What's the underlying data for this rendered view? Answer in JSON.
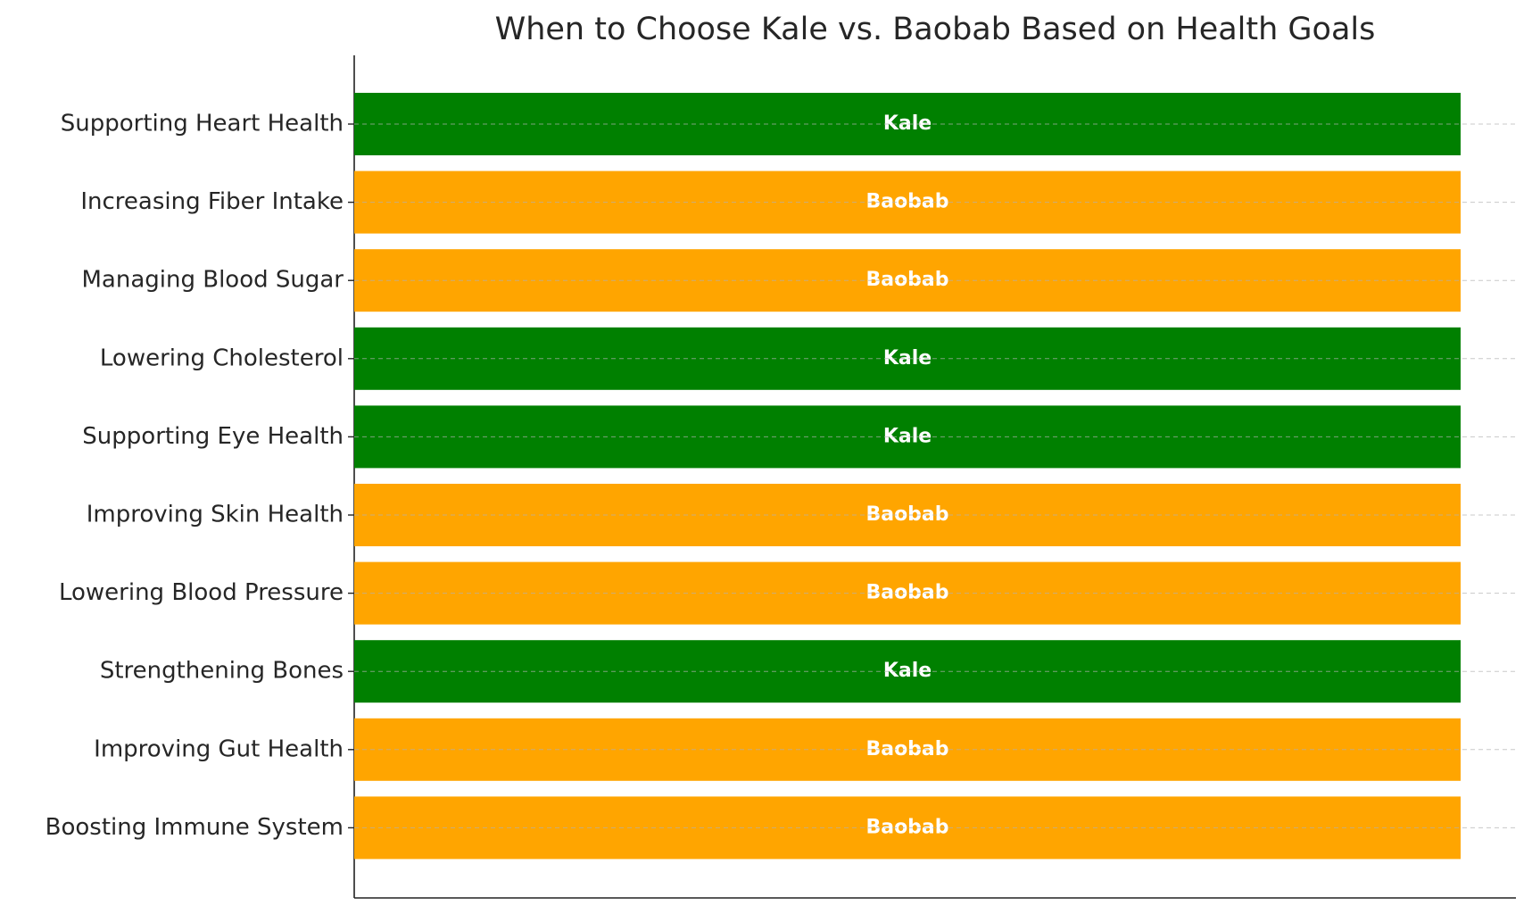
{
  "chart_data": {
    "type": "hbar",
    "title": "When to Choose Kale vs. Baobab Based on Health Goals",
    "categories": [
      "Supporting Heart Health",
      "Increasing Fiber Intake",
      "Managing Blood Sugar",
      "Lowering Cholesterol",
      "Supporting Eye Health",
      "Improving Skin Health",
      "Lowering Blood Pressure",
      "Strengthening Bones",
      "Improving Gut Health",
      "Boosting Immune System"
    ],
    "values": [
      1,
      1,
      1,
      1,
      1,
      1,
      1,
      1,
      1,
      1
    ],
    "value_labels": [
      "Kale",
      "Baobab",
      "Baobab",
      "Kale",
      "Kale",
      "Baobab",
      "Baobab",
      "Kale",
      "Baobab",
      "Baobab"
    ],
    "colors": [
      "#008000",
      "#ffa500",
      "#ffa500",
      "#008000",
      "#008000",
      "#ffa500",
      "#ffa500",
      "#008000",
      "#ffa500",
      "#ffa500"
    ],
    "xlim": [
      0,
      1.05
    ],
    "grid": true
  }
}
